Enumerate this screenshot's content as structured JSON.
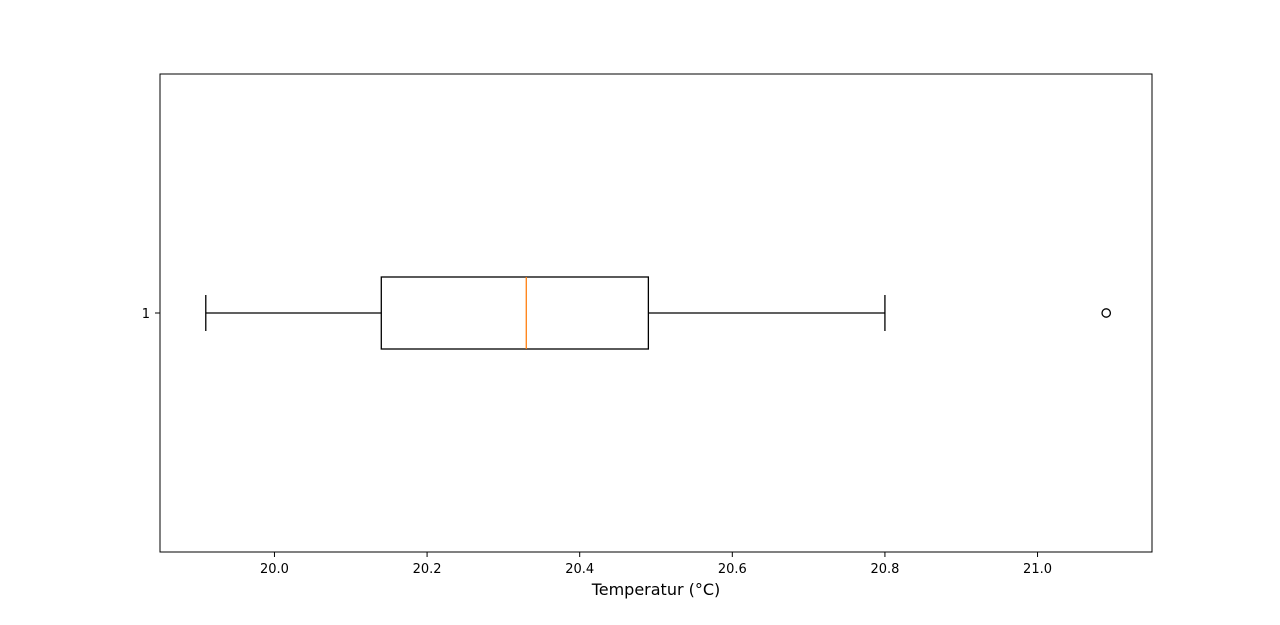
{
  "chart_data": {
    "type": "boxplot",
    "orientation": "horizontal",
    "title": "",
    "xlabel": "Temperatur (°C)",
    "ylabel": "",
    "xlim": [
      19.85,
      21.15
    ],
    "x_ticks": [
      20.0,
      20.2,
      20.4,
      20.6,
      20.8,
      21.0
    ],
    "x_tick_labels": [
      "20.0",
      "20.2",
      "20.4",
      "20.6",
      "20.8",
      "21.0"
    ],
    "y_tick_labels": [
      "1"
    ],
    "grid": false,
    "boxes": [
      {
        "label": "1",
        "whisker_low": 19.91,
        "q1": 20.14,
        "median": 20.33,
        "q3": 20.49,
        "whisker_high": 20.8,
        "outliers": [
          21.09
        ]
      }
    ],
    "colors": {
      "box": "#000000",
      "median": "#ff7f0e",
      "whisker": "#000000",
      "outlier": "#000000"
    }
  }
}
